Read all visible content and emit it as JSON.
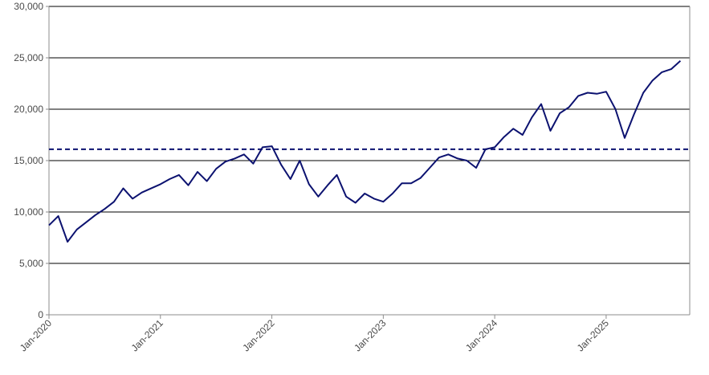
{
  "chart_data": {
    "type": "line",
    "title": "",
    "xlabel": "",
    "ylabel": "",
    "ylim": [
      0,
      30000
    ],
    "xlim": [
      "2020-01",
      "2025-10"
    ],
    "grid": "horizontal",
    "legend": "none",
    "y_ticks": [
      "0",
      "5,000",
      "10,000",
      "15,000",
      "20,000",
      "25,000",
      "30,000"
    ],
    "x_ticks": [
      "Jan-2020",
      "Jan-2021",
      "Jan-2022",
      "Jan-2023",
      "Jan-2024",
      "Jan-2025"
    ],
    "colors": {
      "line": "#0c1270",
      "reference": "#0c1270",
      "grid": "#000000",
      "axis": "#8c8c8c"
    },
    "series": [
      {
        "style": "solid",
        "points": [
          [
            "2020-01",
            8700
          ],
          [
            "2020-02",
            9600
          ],
          [
            "2020-03",
            7100
          ],
          [
            "2020-04",
            8300
          ],
          [
            "2020-05",
            9000
          ],
          [
            "2020-06",
            9700
          ],
          [
            "2020-07",
            10300
          ],
          [
            "2020-08",
            11000
          ],
          [
            "2020-09",
            12300
          ],
          [
            "2020-10",
            11300
          ],
          [
            "2020-11",
            11900
          ],
          [
            "2020-12",
            12300
          ],
          [
            "2021-01",
            12700
          ],
          [
            "2021-02",
            13200
          ],
          [
            "2021-03",
            13600
          ],
          [
            "2021-04",
            12600
          ],
          [
            "2021-05",
            13900
          ],
          [
            "2021-06",
            13000
          ],
          [
            "2021-07",
            14200
          ],
          [
            "2021-08",
            14900
          ],
          [
            "2021-09",
            15200
          ],
          [
            "2021-10",
            15600
          ],
          [
            "2021-11",
            14700
          ],
          [
            "2021-12",
            16300
          ],
          [
            "2022-01",
            16400
          ],
          [
            "2022-02",
            14600
          ],
          [
            "2022-03",
            13200
          ],
          [
            "2022-04",
            15000
          ],
          [
            "2022-05",
            12700
          ],
          [
            "2022-06",
            11500
          ],
          [
            "2022-07",
            12600
          ],
          [
            "2022-08",
            13600
          ],
          [
            "2022-09",
            11500
          ],
          [
            "2022-10",
            10900
          ],
          [
            "2022-11",
            11800
          ],
          [
            "2022-12",
            11300
          ],
          [
            "2023-01",
            11000
          ],
          [
            "2023-02",
            11800
          ],
          [
            "2023-03",
            12800
          ],
          [
            "2023-04",
            12800
          ],
          [
            "2023-05",
            13300
          ],
          [
            "2023-06",
            14300
          ],
          [
            "2023-07",
            15300
          ],
          [
            "2023-08",
            15600
          ],
          [
            "2023-09",
            15200
          ],
          [
            "2023-10",
            15000
          ],
          [
            "2023-11",
            14300
          ],
          [
            "2023-12",
            16100
          ],
          [
            "2024-01",
            16300
          ],
          [
            "2024-02",
            17300
          ],
          [
            "2024-03",
            18100
          ],
          [
            "2024-04",
            17500
          ],
          [
            "2024-05",
            19200
          ],
          [
            "2024-06",
            20500
          ],
          [
            "2024-07",
            17900
          ],
          [
            "2024-08",
            19600
          ],
          [
            "2024-09",
            20200
          ],
          [
            "2024-10",
            21300
          ],
          [
            "2024-11",
            21600
          ],
          [
            "2024-12",
            21500
          ],
          [
            "2025-01",
            21700
          ],
          [
            "2025-02",
            20000
          ],
          [
            "2025-03",
            17200
          ],
          [
            "2025-04",
            19500
          ],
          [
            "2025-05",
            21600
          ],
          [
            "2025-06",
            22800
          ],
          [
            "2025-07",
            23600
          ],
          [
            "2025-08",
            23900
          ],
          [
            "2025-09",
            24700
          ]
        ]
      },
      {
        "style": "dashed",
        "points": [
          [
            "2020-01",
            16100
          ],
          [
            "2025-10",
            16100
          ]
        ]
      }
    ]
  }
}
